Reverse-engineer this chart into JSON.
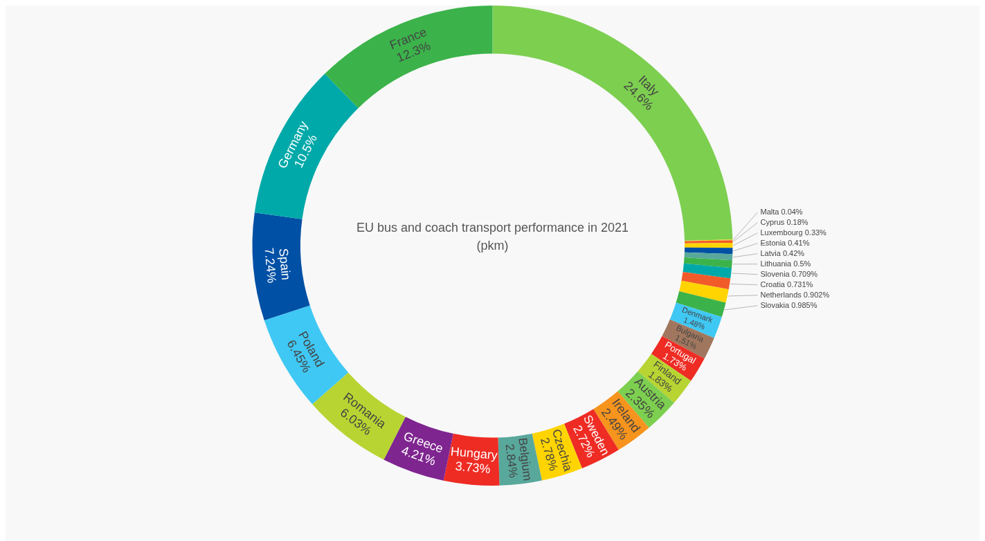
{
  "chart_data": {
    "type": "donut",
    "title": "EU bus and coach transport performance in 2021 (pkm)",
    "categories": [
      "Italy",
      "Malta",
      "Cyprus",
      "Luxembourg",
      "Estonia",
      "Latvia",
      "Lithuania",
      "Slovenia",
      "Croatia",
      "Netherlands",
      "Slovakia",
      "Denmark",
      "Bulgaria",
      "Portugal",
      "Finland",
      "Austria",
      "Ireland",
      "Sweden",
      "Czechia",
      "Belgium",
      "Hungary",
      "Greece",
      "Romania",
      "Poland",
      "Spain",
      "Germany",
      "France"
    ],
    "values": [
      24.6,
      0.04,
      0.18,
      0.33,
      0.41,
      0.42,
      0.5,
      0.709,
      0.731,
      0.902,
      0.985,
      1.48,
      1.51,
      1.73,
      1.83,
      2.35,
      2.49,
      2.72,
      2.78,
      2.84,
      3.73,
      4.21,
      6.03,
      6.45,
      7.24,
      10.5,
      12.3
    ],
    "value_labels": [
      "24.6%",
      "0.04%",
      "0.18%",
      "0.33%",
      "0.41%",
      "0.42%",
      "0.5%",
      "0.709%",
      "0.731%",
      "0.902%",
      "0.985%",
      "1.48%",
      "1.51%",
      "1.73%",
      "1.83%",
      "2.35%",
      "2.49%",
      "2.72%",
      "2.78%",
      "2.84%",
      "3.73%",
      "4.21%",
      "6.03%",
      "6.45%",
      "7.24%",
      "10.5%",
      "12.3%"
    ],
    "colors": [
      "#7dcf50",
      "#ffd400",
      "#f15a29",
      "#ffd400",
      "#0050a5",
      "#59a89c",
      "#3bb34a",
      "#00a9a9",
      "#f15a29",
      "#ffd400",
      "#3bb34a",
      "#40c8f4",
      "#a0775e",
      "#ee2c24",
      "#b8d432",
      "#7dcf50",
      "#f7941d",
      "#ee2c24",
      "#ffd400",
      "#59a89c",
      "#ee2c24",
      "#7f2590",
      "#b8d432",
      "#40c8f4",
      "#0050a5",
      "#00a9a9",
      "#3bb34a"
    ],
    "legend": false
  }
}
